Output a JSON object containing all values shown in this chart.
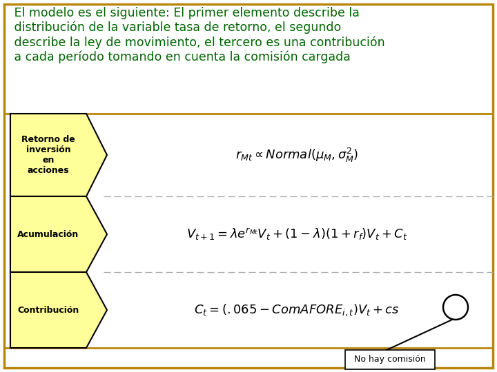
{
  "bg_color": "#ffffff",
  "border_color": "#b8860b",
  "title_text": " El modelo es el siguiente: El primer elemento describe la\n distribución de la variable tasa de retorno, el segundo\n describe la ley de movimiento, el tercero es una contribución\n a cada período tomando en cuenta la comisión cargada",
  "title_color": "#006400",
  "title_fontsize": 12.5,
  "arrow_fill": "#ffff99",
  "arrow_edge": "#000000",
  "label_color": "#000000",
  "label_fontsize": 9,
  "labels": [
    "Retorno de\ninversión\nen\nacciones",
    "Acumulación",
    "Contribución"
  ],
  "eq1": "$r_{Mt} \\propto Normal(\\mu_M, \\sigma_M^2)$",
  "eq2": "$V_{t+1} = \\lambda e^{r_{Mt}} V_t + (1-\\lambda)(1+r_f)V_t + C_t$",
  "eq3": "$C_t = (.065 - ComAFORE_{i,t})V_t + cs$",
  "eq_color": "#000000",
  "eq_fontsize": 13,
  "dashed_color": "#aaaaaa",
  "note_text": "No hay comisión",
  "note_fontsize": 9,
  "circle_color": "#000000"
}
